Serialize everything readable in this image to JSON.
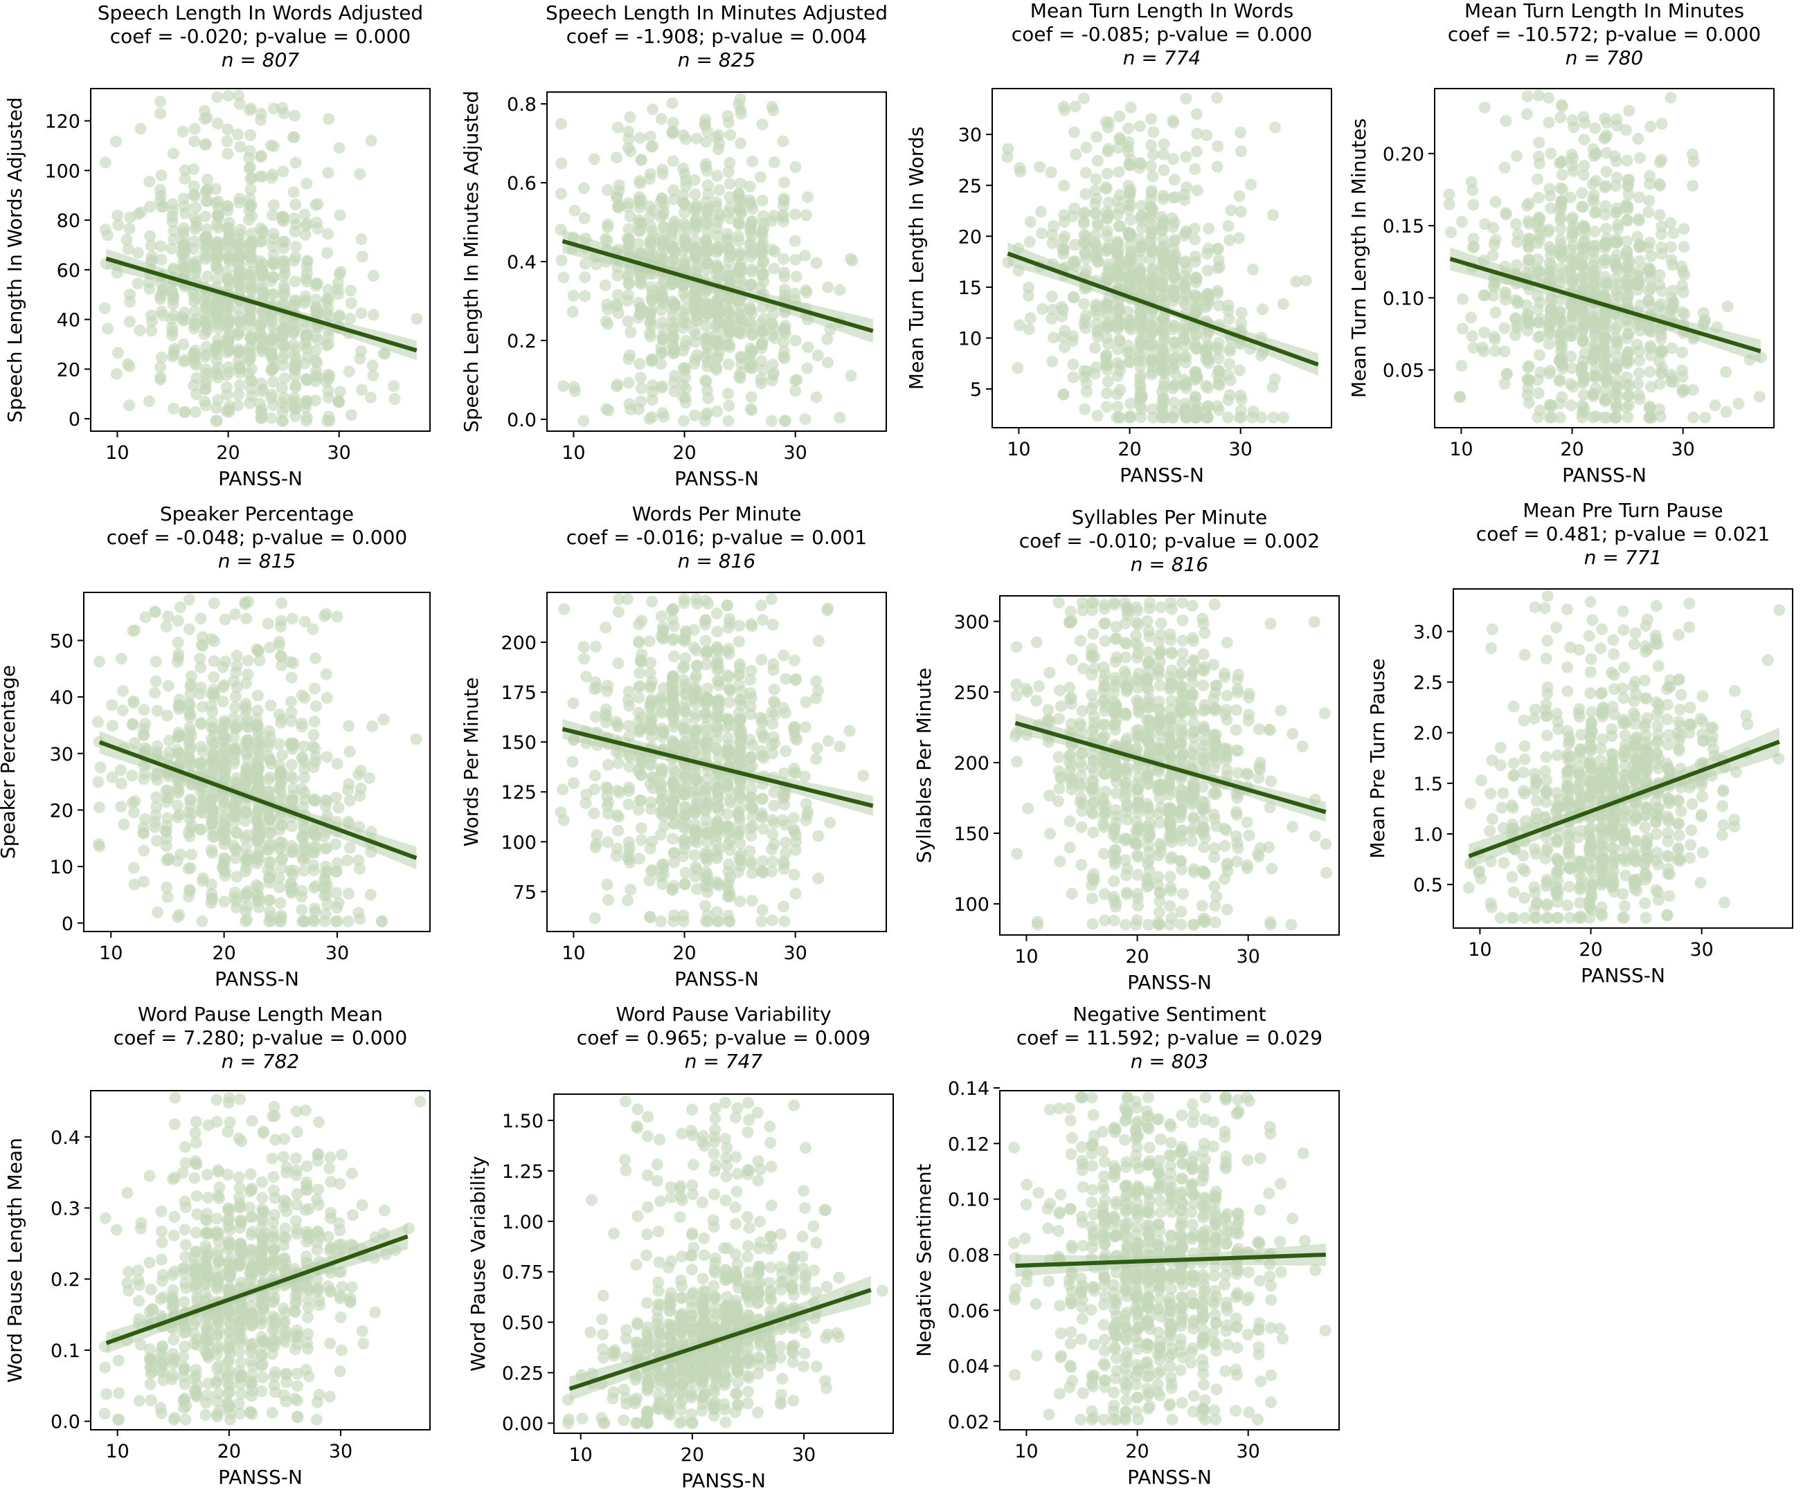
{
  "figure": {
    "background": "#ffffff",
    "point_color": "#c3d6b8",
    "line_color": "#2f5a12",
    "band_color": "#b9cfae"
  },
  "chart_data": [
    {
      "type": "scatter",
      "title": "Speech Length In Words Adjusted",
      "stats": "coef = -0.020; p-value = 0.000",
      "n_label": "n = 807",
      "xlabel": "PANSS-N",
      "ylabel": "Speech Length In Words Adjusted",
      "xlim": [
        7.6,
        38.2
      ],
      "ylim": [
        -5,
        133
      ],
      "xticks": [
        10,
        20,
        30
      ],
      "xtick_labels": [
        "10",
        "20",
        "30"
      ],
      "yticks": [
        0,
        20,
        40,
        60,
        80,
        100,
        120
      ],
      "ytick_labels": [
        "0",
        "20",
        "40",
        "60",
        "80",
        "100",
        "120"
      ],
      "regression": {
        "x": [
          9,
          37
        ],
        "y": [
          64.5,
          27.5
        ],
        "ci_start": 4,
        "ci_mid": 1.2,
        "ci_end": 4
      },
      "scatter": {
        "n": 807,
        "x_mean": 21.5,
        "x_sd": 4.8,
        "y_center": [
          8,
          23
        ],
        "y_spread": 125,
        "y_skew": 0.4,
        "seed": 11
      },
      "points": []
    },
    {
      "type": "scatter",
      "title": "Speech Length In Minutes Adjusted",
      "stats": "coef = -1.908; p-value = 0.004",
      "n_label": "n = 825",
      "xlabel": "PANSS-N",
      "ylabel": "Speech Length In Minutes Adjusted",
      "xlim": [
        7.6,
        38.2
      ],
      "ylim": [
        -0.03,
        0.83
      ],
      "xticks": [
        10,
        20,
        30
      ],
      "xtick_labels": [
        "10",
        "20",
        "30"
      ],
      "yticks": [
        0.0,
        0.2,
        0.4,
        0.6,
        0.8
      ],
      "ytick_labels": [
        "0.0",
        "0.2",
        "0.4",
        "0.6",
        "0.8"
      ],
      "regression": {
        "x": [
          9,
          37
        ],
        "y": [
          0.452,
          0.224
        ],
        "ci_start": 0.03,
        "ci_mid": 0.01,
        "ci_end": 0.03
      },
      "scatter": {
        "n": 825,
        "x_mean": 21.5,
        "x_sd": 4.8,
        "y_center": [
          0.05,
          0.18
        ],
        "y_spread": 0.78,
        "y_skew": 0.4,
        "seed": 22
      },
      "points": []
    },
    {
      "type": "scatter",
      "title": "Mean Turn Length In Words",
      "stats": "coef = -0.085; p-value = 0.000",
      "n_label": "n = 774",
      "xlabel": "PANSS-N",
      "ylabel": "Mean Turn Length In Words",
      "xlim": [
        7.6,
        38.2
      ],
      "ylim": [
        1.2,
        34.5
      ],
      "xticks": [
        10,
        20,
        30
      ],
      "xtick_labels": [
        "10",
        "20",
        "30"
      ],
      "yticks": [
        5,
        10,
        15,
        20,
        25,
        30
      ],
      "ytick_labels": [
        "5",
        "10",
        "15",
        "20",
        "25",
        "30"
      ],
      "regression": {
        "x": [
          9,
          37
        ],
        "y": [
          18.3,
          7.4
        ],
        "ci_start": 1.1,
        "ci_mid": 0.4,
        "ci_end": 1.1
      },
      "scatter": {
        "n": 774,
        "x_mean": 21.5,
        "x_sd": 4.8,
        "y_center": [
          3,
          8
        ],
        "y_spread": 30,
        "y_skew": 0.45,
        "seed": 33
      },
      "points": []
    },
    {
      "type": "scatter",
      "title": "Mean Turn Length In Minutes",
      "stats": "coef = -10.572; p-value = 0.000",
      "n_label": "n = 780",
      "xlabel": "PANSS-N",
      "ylabel": "Mean Turn Length In Minutes",
      "xlim": [
        7.6,
        38.2
      ],
      "ylim": [
        0.01,
        0.245
      ],
      "xticks": [
        10,
        20,
        30
      ],
      "xtick_labels": [
        "10",
        "20",
        "30"
      ],
      "yticks": [
        0.05,
        0.1,
        0.15,
        0.2
      ],
      "ytick_labels": [
        "0.05",
        "0.10",
        "0.15",
        "0.20"
      ],
      "regression": {
        "x": [
          9,
          37
        ],
        "y": [
          0.127,
          0.063
        ],
        "ci_start": 0.008,
        "ci_mid": 0.003,
        "ci_end": 0.008
      },
      "scatter": {
        "n": 780,
        "x_mean": 21.5,
        "x_sd": 4.8,
        "y_center": [
          0.02,
          0.06
        ],
        "y_spread": 0.21,
        "y_skew": 0.45,
        "seed": 44
      },
      "points": []
    },
    {
      "type": "scatter",
      "title": "Speaker Percentage",
      "stats": "coef = -0.048; p-value = 0.000",
      "n_label": "n = 815",
      "xlabel": "PANSS-N",
      "ylabel": "Speaker Percentage",
      "xlim": [
        7.6,
        38.2
      ],
      "ylim": [
        -1.5,
        58.5
      ],
      "xticks": [
        10,
        20,
        30
      ],
      "xtick_labels": [
        "10",
        "20",
        "30"
      ],
      "yticks": [
        0,
        10,
        20,
        30,
        40,
        50
      ],
      "ytick_labels": [
        "0",
        "10",
        "20",
        "30",
        "40",
        "50"
      ],
      "regression": {
        "x": [
          9,
          37
        ],
        "y": [
          32.0,
          11.5
        ],
        "ci_start": 2,
        "ci_mid": 0.7,
        "ci_end": 2
      },
      "scatter": {
        "n": 815,
        "x_mean": 21.5,
        "x_sd": 4.8,
        "y_center": [
          5,
          12
        ],
        "y_spread": 53,
        "y_skew": 0.45,
        "seed": 55
      },
      "points": []
    },
    {
      "type": "scatter",
      "title": "Words Per Minute",
      "stats": "coef = -0.016; p-value = 0.001",
      "n_label": "n = 816",
      "xlabel": "PANSS-N",
      "ylabel": "Words Per Minute",
      "xlim": [
        7.6,
        38.2
      ],
      "ylim": [
        55,
        225
      ],
      "xticks": [
        10,
        20,
        30
      ],
      "xtick_labels": [
        "10",
        "20",
        "30"
      ],
      "yticks": [
        75,
        100,
        125,
        150,
        175,
        200
      ],
      "ytick_labels": [
        "75",
        "100",
        "125",
        "150",
        "175",
        "200"
      ],
      "regression": {
        "x": [
          9,
          37
        ],
        "y": [
          156.5,
          118.0
        ],
        "ci_start": 5,
        "ci_mid": 2,
        "ci_end": 5
      },
      "scatter": {
        "n": 816,
        "x_mean": 21.5,
        "x_sd": 4.8,
        "y_center": [
          62,
          82
        ],
        "y_spread": 152,
        "y_skew": 0.5,
        "seed": 66
      },
      "points": []
    },
    {
      "type": "scatter",
      "title": "Syllables Per Minute",
      "stats": "coef = -0.010; p-value = 0.002",
      "n_label": "n = 816",
      "xlabel": "PANSS-N",
      "ylabel": "Syllables Per Minute",
      "xlim": [
        7.6,
        38.2
      ],
      "ylim": [
        78,
        318
      ],
      "xticks": [
        10,
        20,
        30
      ],
      "xtick_labels": [
        "10",
        "20",
        "30"
      ],
      "yticks": [
        100,
        150,
        200,
        250,
        300
      ],
      "ytick_labels": [
        "100",
        "150",
        "200",
        "250",
        "300"
      ],
      "regression": {
        "x": [
          9,
          37
        ],
        "y": [
          228.0,
          165.0
        ],
        "ci_start": 7,
        "ci_mid": 2.5,
        "ci_end": 7
      },
      "scatter": {
        "n": 816,
        "x_mean": 21.5,
        "x_sd": 4.8,
        "y_center": [
          88,
          110
        ],
        "y_spread": 218,
        "y_skew": 0.5,
        "seed": 77
      },
      "points": []
    },
    {
      "type": "scatter",
      "title": "Mean Pre Turn Pause",
      "stats": "coef = 0.481; p-value = 0.021",
      "n_label": "n = 771",
      "xlabel": "PANSS-N",
      "ylabel": "Mean Pre Turn Pause",
      "xlim": [
        7.6,
        38.2
      ],
      "ylim": [
        0.07,
        3.42
      ],
      "xticks": [
        10,
        20,
        30
      ],
      "xtick_labels": [
        "10",
        "20",
        "30"
      ],
      "yticks": [
        0.5,
        1.0,
        1.5,
        2.0,
        2.5,
        3.0
      ],
      "ytick_labels": [
        "0.5",
        "1.0",
        "1.5",
        "2.0",
        "2.5",
        "3.0"
      ],
      "regression": {
        "x": [
          9,
          37
        ],
        "y": [
          0.78,
          1.91
        ],
        "ci_start": 0.12,
        "ci_mid": 0.05,
        "ci_end": 0.14
      },
      "scatter": {
        "n": 771,
        "x_mean": 21.5,
        "x_sd": 4.8,
        "y_center": [
          0.22,
          0.1
        ],
        "y_spread": 3.0,
        "y_skew": 0.4,
        "seed": 88
      },
      "points": []
    },
    {
      "type": "scatter",
      "title": "Word Pause Length Mean",
      "stats": "coef = 7.280; p-value = 0.000",
      "n_label": "n = 782",
      "xlabel": "PANSS-N",
      "ylabel": "Word Pause Length Mean",
      "xlim": [
        7.6,
        38.0
      ],
      "ylim": [
        -0.012,
        0.465
      ],
      "xticks": [
        10,
        20,
        30
      ],
      "xtick_labels": [
        "10",
        "20",
        "30"
      ],
      "yticks": [
        0.0,
        0.1,
        0.2,
        0.3,
        0.4
      ],
      "ytick_labels": [
        "0.0",
        "0.1",
        "0.2",
        "0.3",
        "0.4"
      ],
      "regression": {
        "x": [
          9,
          36
        ],
        "y": [
          0.11,
          0.26
        ],
        "ci_start": 0.015,
        "ci_mid": 0.006,
        "ci_end": 0.018
      },
      "scatter": {
        "n": 782,
        "x_mean": 21.5,
        "x_sd": 4.8,
        "y_center": [
          0.05,
          0.05
        ],
        "y_spread": 0.4,
        "y_skew": 0.4,
        "seed": 99
      },
      "points": []
    },
    {
      "type": "scatter",
      "title": "Word Pause Variability",
      "stats": "coef = 0.965; p-value = 0.009",
      "n_label": "n = 747",
      "xlabel": "PANSS-N",
      "ylabel": "Word Pause Variability",
      "xlim": [
        7.6,
        38.0
      ],
      "ylim": [
        -0.05,
        1.63
      ],
      "xticks": [
        10,
        20,
        30
      ],
      "xtick_labels": [
        "10",
        "20",
        "30"
      ],
      "yticks": [
        0.0,
        0.25,
        0.5,
        0.75,
        1.0,
        1.25,
        1.5
      ],
      "ytick_labels": [
        "0.00",
        "0.25",
        "0.50",
        "0.75",
        "1.00",
        "1.25",
        "1.50"
      ],
      "regression": {
        "x": [
          9,
          36
        ],
        "y": [
          0.17,
          0.66
        ],
        "ci_start": 0.06,
        "ci_mid": 0.025,
        "ci_end": 0.07
      },
      "scatter": {
        "n": 747,
        "x_mean": 21.5,
        "x_sd": 4.8,
        "y_center": [
          0.0,
          0.0
        ],
        "y_spread": 1.55,
        "y_skew": 0.25,
        "seed": 111
      },
      "points": []
    },
    {
      "type": "scatter",
      "title": "Negative Sentiment",
      "stats": "coef = 11.592; p-value = 0.029",
      "n_label": "n = 803",
      "xlabel": "PANSS-N",
      "ylabel": "Negative Sentiment",
      "xlim": [
        7.6,
        38.2
      ],
      "ylim": [
        0.017,
        0.139
      ],
      "xticks": [
        10,
        20,
        30
      ],
      "xtick_labels": [
        "10",
        "20",
        "30"
      ],
      "yticks": [
        0.02,
        0.04,
        0.06,
        0.08,
        0.1,
        0.12,
        0.14
      ],
      "ytick_labels": [
        "0.02",
        "0.04",
        "0.06",
        "0.08",
        "0.10",
        "0.12",
        "0.14"
      ],
      "regression": {
        "x": [
          9,
          37
        ],
        "y": [
          0.076,
          0.08
        ],
        "ci_start": 0.004,
        "ci_mid": 0.0015,
        "ci_end": 0.004
      },
      "scatter": {
        "n": 803,
        "x_mean": 21.5,
        "x_sd": 4.8,
        "y_center": [
          0.03,
          0.04
        ],
        "y_spread": 0.1,
        "y_skew": 0.6,
        "seed": 122
      },
      "points": []
    }
  ]
}
